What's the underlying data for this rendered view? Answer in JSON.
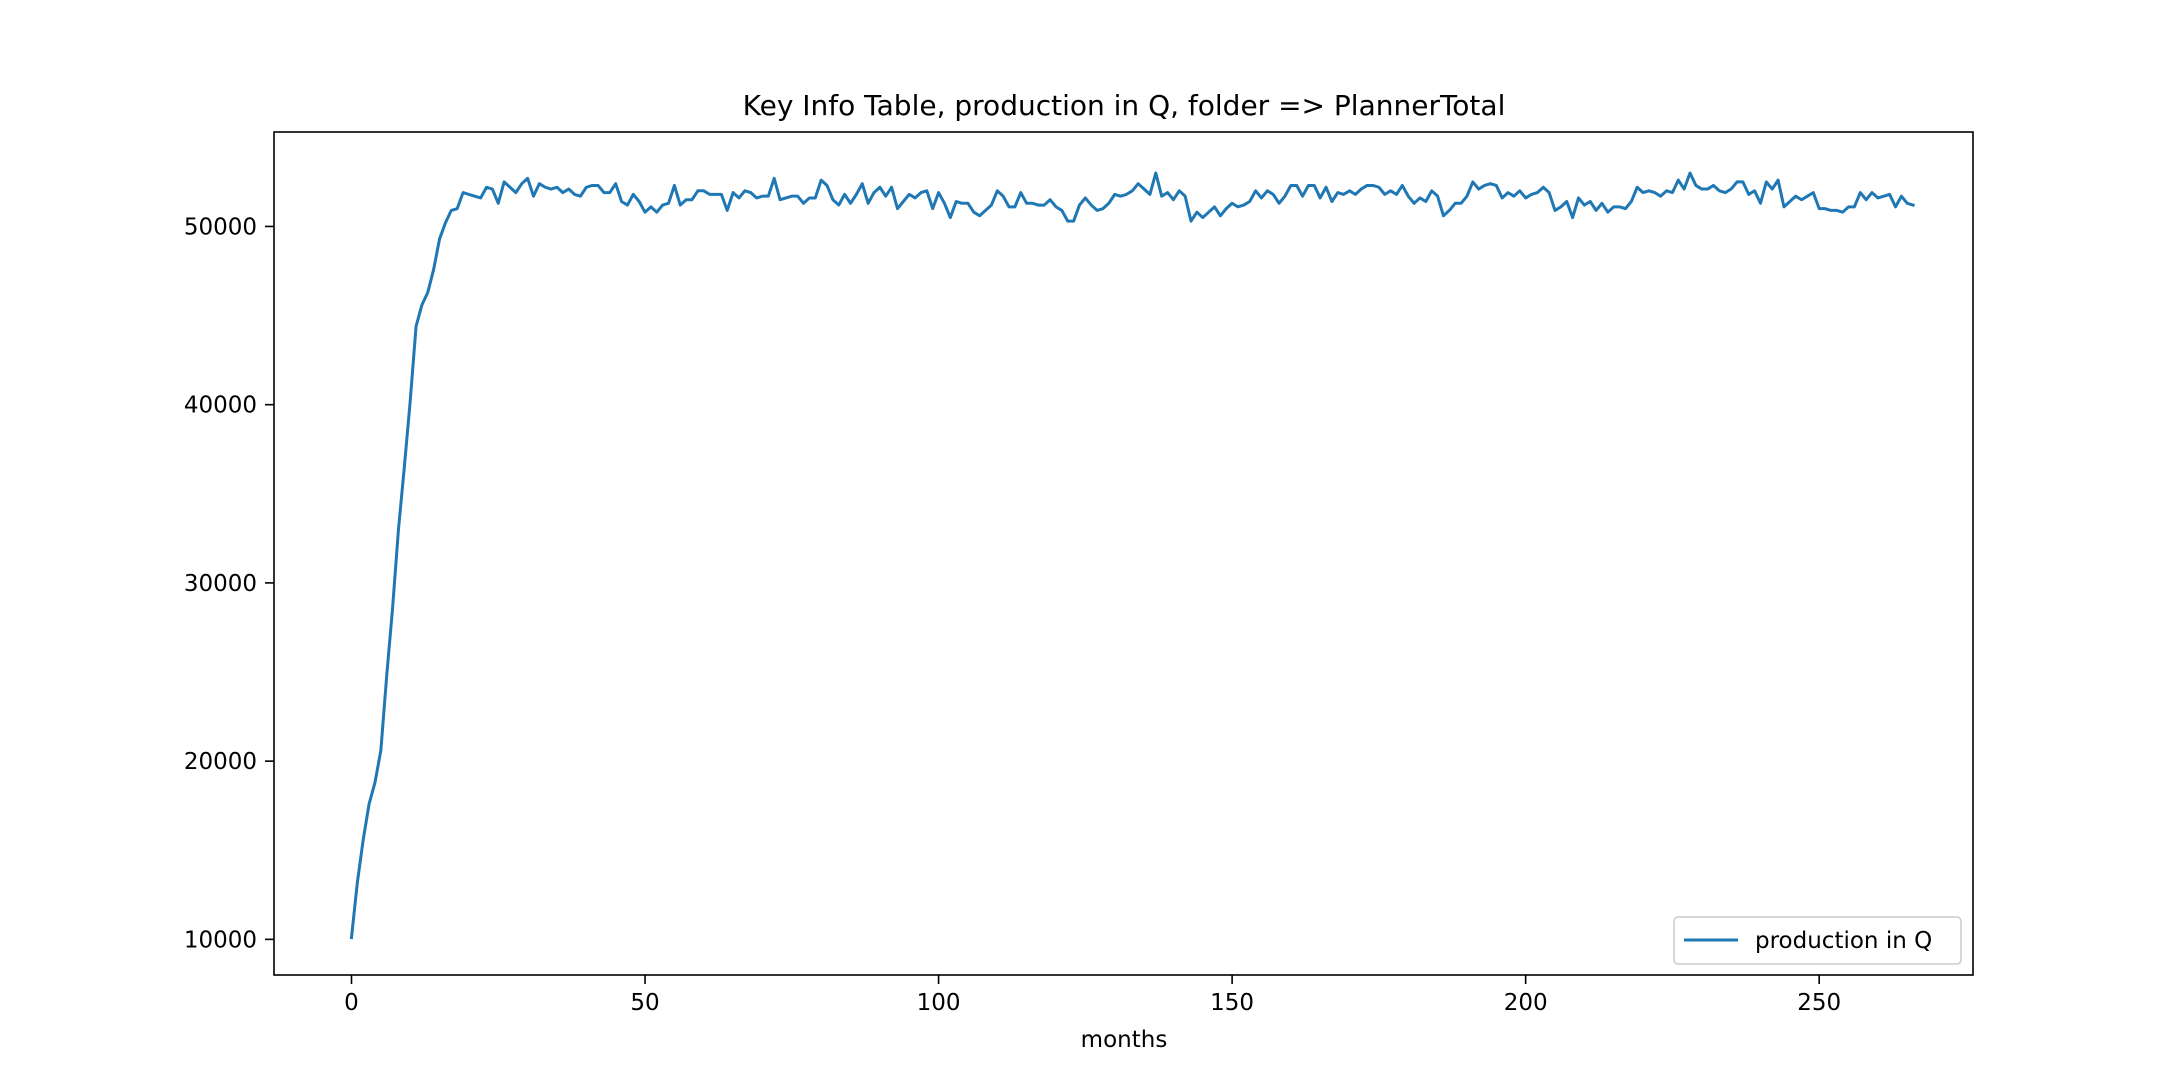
{
  "chart_data": {
    "type": "line",
    "title": "Key Info Table, production in Q, folder => PlannerTotal",
    "xlabel": "months",
    "ylabel": "",
    "xlim": [
      -13.2,
      276.2
    ],
    "ylim": [
      8000,
      55300
    ],
    "xticks": [
      0,
      50,
      100,
      150,
      200,
      250
    ],
    "yticks": [
      10000,
      20000,
      30000,
      40000,
      50000
    ],
    "grid": false,
    "legend": {
      "position": "lower right",
      "entries": [
        "production in Q"
      ]
    },
    "colors": {
      "series": "#1f77b4",
      "axes": "#000000",
      "background": "#ffffff"
    },
    "series": [
      {
        "name": "production in Q",
        "x_start": 0,
        "x_step": 1,
        "values": [
          10100,
          13200,
          15600,
          17600,
          18800,
          20600,
          24800,
          28600,
          33000,
          36500,
          40200,
          44400,
          45600,
          46300,
          47600,
          49300,
          50200,
          50900,
          51000,
          51900,
          51800,
          51700,
          51600,
          52200,
          52100,
          51300,
          52500,
          52200,
          51900,
          52400,
          52700,
          51700,
          52400,
          52200,
          52100,
          52200,
          51900,
          52100,
          51800,
          51700,
          52200,
          52300,
          52300,
          51900,
          51900,
          52400,
          51400,
          51200,
          51800,
          51400,
          50800,
          51100,
          50800,
          51200,
          51300,
          52300,
          51200,
          51500,
          51500,
          52000,
          52000,
          51800,
          51800,
          51800,
          50900,
          51900,
          51600,
          52000,
          51900,
          51600,
          51700,
          51700,
          52700,
          51500,
          51600,
          51700,
          51700,
          51300,
          51600,
          51600,
          52600,
          52300,
          51500,
          51200,
          51800,
          51300,
          51800,
          52400,
          51300,
          51900,
          52200,
          51700,
          52200,
          51000,
          51400,
          51800,
          51600,
          51900,
          52000,
          51000,
          51900,
          51300,
          50500,
          51400,
          51300,
          51300,
          50800,
          50600,
          50900,
          51200,
          52000,
          51700,
          51100,
          51100,
          51900,
          51300,
          51300,
          51200,
          51200,
          51500,
          51100,
          50900,
          50300,
          50300,
          51200,
          51600,
          51200,
          50900,
          51000,
          51300,
          51800,
          51700,
          51800,
          52000,
          52400,
          52100,
          51800,
          53000,
          51700,
          51900,
          51500,
          52000,
          51700,
          50300,
          50800,
          50500,
          50800,
          51100,
          50600,
          51000,
          51300,
          51100,
          51200,
          51400,
          52000,
          51600,
          52000,
          51800,
          51300,
          51700,
          52300,
          52300,
          51700,
          52300,
          52300,
          51600,
          52200,
          51400,
          51900,
          51800,
          52000,
          51800,
          52100,
          52300,
          52300,
          52200,
          51800,
          52000,
          51800,
          52300,
          51700,
          51300,
          51600,
          51400,
          52000,
          51700,
          50600,
          50900,
          51300,
          51300,
          51700,
          52500,
          52100,
          52300,
          52400,
          52300,
          51600,
          51900,
          51700,
          52000,
          51600,
          51800,
          51900,
          52200,
          51900,
          50900,
          51100,
          51400,
          50500,
          51600,
          51200,
          51400,
          50900,
          51300,
          50800,
          51100,
          51100,
          51000,
          51400,
          52200,
          51900,
          52000,
          51900,
          51700,
          52000,
          51900,
          52600,
          52100,
          53000,
          52300,
          52100,
          52100,
          52300,
          52000,
          51900,
          52100,
          52500,
          52500,
          51800,
          52000,
          51300,
          52500,
          52100,
          52600,
          51100,
          51400,
          51700,
          51500,
          51700,
          51900,
          51000,
          51000,
          50900,
          50900,
          50800,
          51100,
          51100,
          51900,
          51500,
          51900,
          51600,
          51700,
          51800,
          51100,
          51700,
          51300,
          51200
        ]
      }
    ]
  }
}
